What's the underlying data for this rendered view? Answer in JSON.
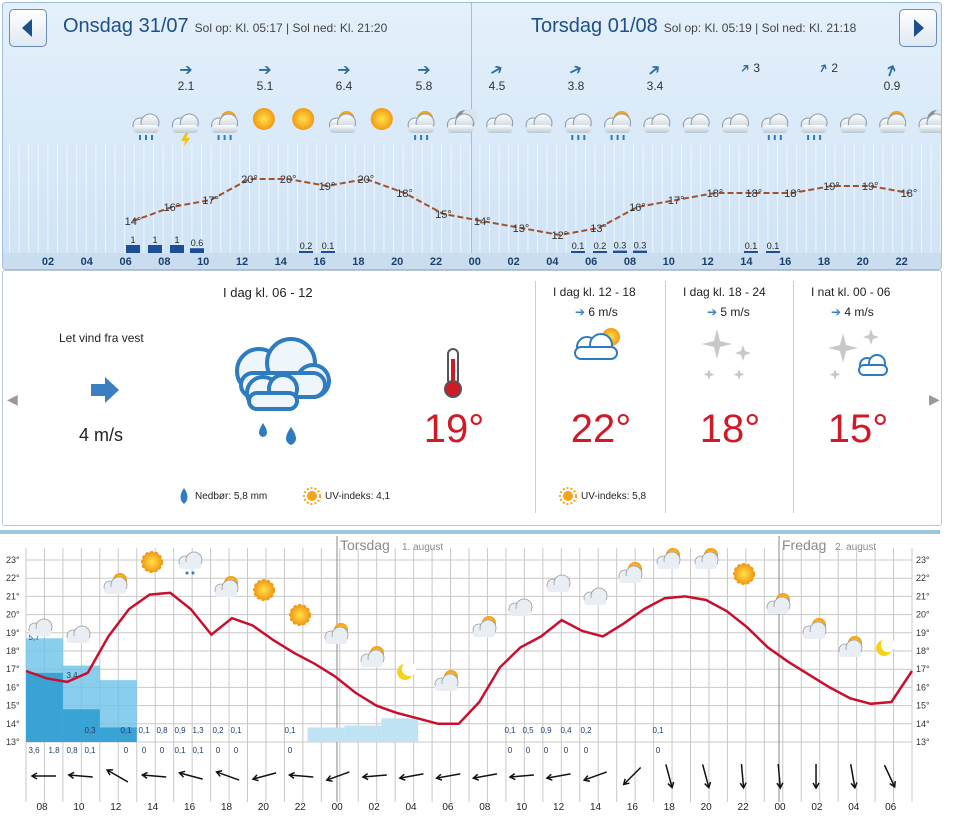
{
  "top": {
    "day1": {
      "title": "Onsdag 31/07",
      "sol": "Sol op: Kl. 05:17 | Sol ned: Kl. 21:20"
    },
    "day2": {
      "title": "Torsdag 01/08",
      "sol": "Sol op: Kl. 05:19 | Sol ned: Kl. 21:18"
    },
    "winds": [
      "2.1",
      "5.1",
      "6.4",
      "5.8",
      "4.5",
      "3.8",
      "3.4",
      "3",
      "2",
      "0.9"
    ],
    "temps": [
      "14°",
      "16°",
      "17°",
      "20°",
      "20°",
      "19°",
      "20°",
      "18°",
      "15°",
      "14°",
      "13°",
      "12°",
      "13°",
      "16°",
      "17°",
      "18°",
      "18°",
      "18°",
      "19°",
      "19°",
      "18°"
    ],
    "precip": [
      "1",
      "1",
      "1",
      "0.6",
      "0.2",
      "0.1",
      "0.1",
      "0.2",
      "0.3",
      "0.3",
      "0.1",
      "0.1"
    ],
    "hours": [
      "02",
      "04",
      "06",
      "08",
      "10",
      "12",
      "14",
      "16",
      "18",
      "20",
      "22",
      "00",
      "02",
      "04",
      "06",
      "08",
      "10",
      "12",
      "14",
      "16",
      "18",
      "20",
      "22"
    ],
    "icons": [
      "rain-cloud-icon",
      "thunder-cloud-icon",
      "sun-cloud-rain-icon",
      "sun-icon",
      "sun-icon",
      "sun-cloud-icon",
      "sun-icon",
      "sun-cloud-rain-icon",
      "moon-cloud-icon",
      "cloud-icon",
      "cloud-icon",
      "rain-cloud-icon",
      "sun-cloud-rain-icon",
      "cloud-icon",
      "cloud-icon",
      "cloud-icon",
      "rain-cloud-icon",
      "rain-cloud-icon",
      "cloud-icon",
      "sun-cloud-icon",
      "moon-cloud-icon"
    ]
  },
  "mid": {
    "now": {
      "title": "I dag kl. 06 - 12",
      "wind_text": "Let vind fra vest",
      "wind_speed": "4 m/s",
      "temp": "19°",
      "precip": "Nedbør: 5,8 mm",
      "uv": "UV-indeks: 4,1"
    },
    "p1": {
      "title": "I dag kl. 12 - 18",
      "wind": "6 m/s",
      "temp": "22°",
      "uv": "UV-indeks: 5,8"
    },
    "p2": {
      "title": "I dag kl. 18 - 24",
      "wind": "5 m/s",
      "temp": "18°"
    },
    "p3": {
      "title": "I nat kl. 00 - 06",
      "wind": "4 m/s",
      "temp": "15°"
    }
  },
  "bottom": {
    "day1": "Torsdag",
    "day1_sub": "1. august",
    "day2": "Fredag",
    "day2_sub": "2. august",
    "colors": {
      "curve": "#c8102e",
      "precip": "#3aa3d6",
      "grid": "#c8c8c8"
    },
    "chart_data": {
      "type": "line",
      "ylim": [
        13,
        23
      ],
      "yticks": [
        "13°",
        "14°",
        "15°",
        "16°",
        "17°",
        "18°",
        "19°",
        "20°",
        "21°",
        "22°",
        "23°"
      ],
      "xticks": [
        "08",
        "10",
        "12",
        "14",
        "16",
        "18",
        "20",
        "22",
        "00",
        "02",
        "04",
        "06",
        "08",
        "10",
        "12",
        "14",
        "16",
        "18",
        "20",
        "22",
        "00",
        "02",
        "04",
        "06"
      ],
      "temperature": [
        16.9,
        16.5,
        16.3,
        16.8,
        18.8,
        20.3,
        21.1,
        21.2,
        20.3,
        18.9,
        19.8,
        19.4,
        18.6,
        17.9,
        17.3,
        16.6,
        15.7,
        15.0,
        14.6,
        14.3,
        14.0,
        14.0,
        15.2,
        17.1,
        18.2,
        18.8,
        19.7,
        19.1,
        18.8,
        19.5,
        20.3,
        20.9,
        21.0,
        20.8,
        20.2,
        19.3,
        18.2,
        17.4,
        16.7,
        16.0,
        15.4,
        15.1,
        15.2,
        16.9
      ],
      "precip_top": [
        "5,7",
        "3,4",
        "0,3",
        "0,1",
        "0,1",
        "0,8",
        "0,9",
        "1,3",
        "0,2",
        "0,1",
        "0,1",
        "0,1",
        "0,5",
        "0,9",
        "0,4",
        "0,2",
        "0,1"
      ],
      "precip_bottom": [
        "3,6",
        "1,8",
        "0,8",
        "0,1",
        "0",
        "0",
        "0",
        "0,1",
        "0,1",
        "0",
        "0",
        "0",
        "0",
        "0",
        "0",
        "0",
        "0",
        "0",
        "0"
      ]
    }
  }
}
